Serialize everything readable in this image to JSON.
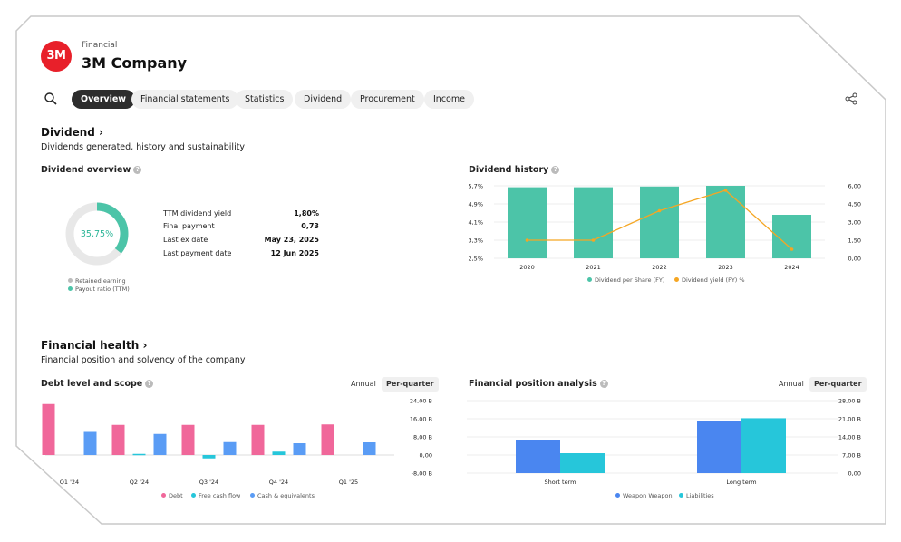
{
  "header": {
    "category": "Financial",
    "company": "3M Company",
    "logo_text": "3M"
  },
  "tabs": [
    {
      "label": "Overview",
      "active": true
    },
    {
      "label": "Financial statements",
      "active": false
    },
    {
      "label": "Statistics",
      "active": false
    },
    {
      "label": "Dividend",
      "active": false
    },
    {
      "label": "Procurement",
      "active": false
    },
    {
      "label": "Income",
      "active": false
    }
  ],
  "dividend": {
    "title": "Dividend ›",
    "subtitle": "Dividends generated, history and sustainability",
    "overview": {
      "title": "Dividend overview",
      "donut_percent_label": "35,75%",
      "payout_ratio": 0.3575,
      "rows": [
        {
          "label": "TTM dividend yield",
          "value": "1,80%"
        },
        {
          "label": "Final payment",
          "value": "0,73"
        },
        {
          "label": "Last ex date",
          "value": "May 23, 2025"
        },
        {
          "label": "Last payment date",
          "value": "12 Jun 2025"
        }
      ],
      "legend": [
        "Retained earning",
        "Payout ratio (TTM)"
      ]
    },
    "history": {
      "title": "Dividend history",
      "legend": [
        "Dividend per Share (FY)",
        "Dividend yield (FY) %"
      ]
    }
  },
  "health": {
    "title": "Financial health ›",
    "subtitle": "Financial position and solvency of the company",
    "debt": {
      "title": "Debt level and scope",
      "toggle": [
        "Annual",
        "Per-quarter"
      ],
      "legend": [
        "Debt",
        "Free cash flow",
        "Cash & equivalents"
      ]
    },
    "position": {
      "title": "Financial position analysis",
      "toggle": [
        "Annual",
        "Per-quarter"
      ],
      "legend": [
        "Weapon Weapon",
        "Liabilities"
      ]
    }
  },
  "colors": {
    "teal": "#4cc4a8",
    "orange": "#f5a623",
    "pink": "#f0679a",
    "cyan": "#26c6da",
    "blue": "#5a9cf5",
    "blue_dark": "#4a86f0",
    "grey": "#e8e8e8"
  },
  "chart_data": [
    {
      "type": "bar",
      "title": "Dividend history",
      "categories": [
        "2020",
        "2021",
        "2022",
        "2023",
        "2024"
      ],
      "series": [
        {
          "name": "Dividend per Share (FY)",
          "axis": "right",
          "values": [
            5.88,
            5.88,
            5.94,
            6.0,
            3.6
          ]
        },
        {
          "name": "Dividend yield (FY) %",
          "type": "line",
          "axis": "left",
          "values": [
            3.3,
            3.3,
            4.6,
            5.5,
            2.9
          ]
        }
      ],
      "y_left_ticks": [
        "5,7%",
        "4,9%",
        "4,1%",
        "3,3%",
        "2,5%"
      ],
      "y_left_range": [
        2.5,
        5.7
      ],
      "y_right_ticks": [
        "6,00",
        "4,50",
        "3,00",
        "1,50",
        "0,00"
      ],
      "y_right_range": [
        0,
        6
      ]
    },
    {
      "type": "bar",
      "title": "Debt level and scope",
      "categories": [
        "Q1 '24",
        "Q2 '24",
        "Q3 '24",
        "Q4 '24",
        "Q1 '25"
      ],
      "series": [
        {
          "name": "Debt",
          "values": [
            22.5,
            13.3,
            13.3,
            13.3,
            13.5
          ]
        },
        {
          "name": "Free cash flow",
          "values": [
            0,
            0.5,
            -1.5,
            1.5,
            0
          ]
        },
        {
          "name": "Cash & equivalents",
          "values": [
            10.2,
            9.3,
            5.7,
            5.2,
            5.6
          ]
        }
      ],
      "y_ticks": [
        "24,00 B",
        "16,00 B",
        "8,00 B",
        "0,00",
        "-8,00 B"
      ],
      "ylim": [
        -8,
        24
      ]
    },
    {
      "type": "bar",
      "title": "Financial position analysis",
      "categories": [
        "Short term",
        "Long term"
      ],
      "series": [
        {
          "name": "Weapon Weapon",
          "values": [
            12.8,
            20.0
          ]
        },
        {
          "name": "Liabilities",
          "values": [
            7.7,
            21.2
          ]
        }
      ],
      "y_ticks": [
        "28,00 B",
        "21,00 B",
        "14,00 B",
        "7,00 B",
        "0,00"
      ],
      "ylim": [
        0,
        28
      ]
    }
  ]
}
